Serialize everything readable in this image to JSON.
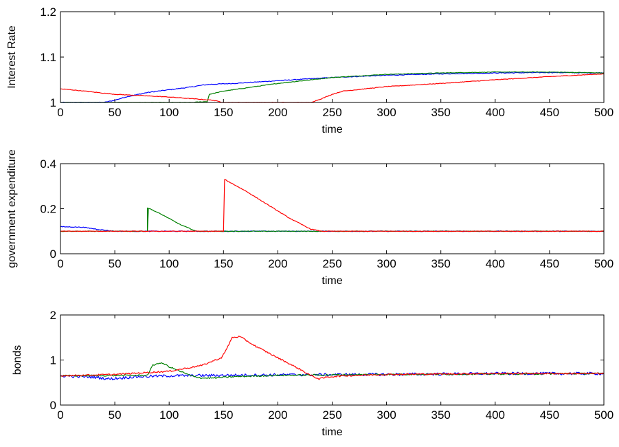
{
  "chart_data": [
    {
      "type": "line",
      "xlabel": "time",
      "ylabel": "Interest Rate",
      "xlim": [
        0,
        500
      ],
      "ylim": [
        1,
        1.2
      ],
      "xticks": [
        0,
        50,
        100,
        150,
        200,
        250,
        300,
        350,
        400,
        450,
        500
      ],
      "yticks": [
        1,
        1.1,
        1.2
      ],
      "ytick_labels": [
        "1",
        "1.1",
        "1.2"
      ],
      "grid": false,
      "series": [
        {
          "color": "#0000ff",
          "noise": 0.004,
          "points": [
            [
              0,
              1.0
            ],
            [
              40,
              1.0
            ],
            [
              50,
              1.005
            ],
            [
              60,
              1.012
            ],
            [
              80,
              1.022
            ],
            [
              100,
              1.028
            ],
            [
              120,
              1.034
            ],
            [
              130,
              1.038
            ],
            [
              138,
              1.04
            ],
            [
              160,
              1.042
            ],
            [
              200,
              1.048
            ],
            [
              250,
              1.055
            ],
            [
              300,
              1.06
            ],
            [
              350,
              1.063
            ],
            [
              400,
              1.065
            ],
            [
              450,
              1.066
            ],
            [
              500,
              1.065
            ]
          ]
        },
        {
          "color": "#008000",
          "noise": 0.003,
          "points": [
            [
              0,
              1.0
            ],
            [
              120,
              1.0
            ],
            [
              135,
              1.002
            ],
            [
              137,
              1.018
            ],
            [
              150,
              1.025
            ],
            [
              200,
              1.042
            ],
            [
              250,
              1.055
            ],
            [
              300,
              1.062
            ],
            [
              350,
              1.065
            ],
            [
              400,
              1.067
            ],
            [
              450,
              1.067
            ],
            [
              500,
              1.065
            ]
          ]
        },
        {
          "color": "#ff0000",
          "noise": 0.003,
          "points": [
            [
              0,
              1.03
            ],
            [
              10,
              1.028
            ],
            [
              50,
              1.018
            ],
            [
              100,
              1.012
            ],
            [
              140,
              1.005
            ],
            [
              150,
              1.0
            ],
            [
              230,
              1.0
            ],
            [
              240,
              1.008
            ],
            [
              250,
              1.018
            ],
            [
              260,
              1.025
            ],
            [
              300,
              1.035
            ],
            [
              350,
              1.042
            ],
            [
              400,
              1.05
            ],
            [
              450,
              1.057
            ],
            [
              500,
              1.063
            ]
          ]
        }
      ]
    },
    {
      "type": "line",
      "xlabel": "time",
      "ylabel": "government expenditure",
      "xlim": [
        0,
        500
      ],
      "ylim": [
        0,
        0.4
      ],
      "xticks": [
        0,
        50,
        100,
        150,
        200,
        250,
        300,
        350,
        400,
        450,
        500
      ],
      "yticks": [
        0,
        0.2,
        0.4
      ],
      "ytick_labels": [
        "0",
        "0.2",
        "0.4"
      ],
      "grid": false,
      "series": [
        {
          "color": "#0000ff",
          "noise": 0.004,
          "points": [
            [
              0,
              0.12
            ],
            [
              20,
              0.118
            ],
            [
              40,
              0.105
            ],
            [
              50,
              0.1
            ],
            [
              500,
              0.1
            ]
          ]
        },
        {
          "color": "#008000",
          "noise": 0.003,
          "points": [
            [
              0,
              0.1
            ],
            [
              80,
              0.1
            ],
            [
              80,
              0.205
            ],
            [
              95,
              0.17
            ],
            [
              110,
              0.13
            ],
            [
              125,
              0.1
            ],
            [
              500,
              0.1
            ]
          ]
        },
        {
          "color": "#ff0000",
          "noise": 0.003,
          "points": [
            [
              0,
              0.1
            ],
            [
              150,
              0.1
            ],
            [
              151,
              0.33
            ],
            [
              170,
              0.28
            ],
            [
              190,
              0.22
            ],
            [
              210,
              0.16
            ],
            [
              230,
              0.11
            ],
            [
              240,
              0.1
            ],
            [
              500,
              0.1
            ]
          ]
        }
      ]
    },
    {
      "type": "line",
      "xlabel": "time",
      "ylabel": "bonds",
      "xlim": [
        0,
        500
      ],
      "ylim": [
        0,
        2
      ],
      "xticks": [
        0,
        50,
        100,
        150,
        200,
        250,
        300,
        350,
        400,
        450,
        500
      ],
      "yticks": [
        0,
        1,
        2
      ],
      "ytick_labels": [
        "0",
        "1",
        "2"
      ],
      "grid": false,
      "series": [
        {
          "color": "#0000ff",
          "noise": 0.015,
          "points": [
            [
              0,
              0.65
            ],
            [
              30,
              0.62
            ],
            [
              45,
              0.58
            ],
            [
              55,
              0.6
            ],
            [
              70,
              0.63
            ],
            [
              100,
              0.65
            ],
            [
              150,
              0.66
            ],
            [
              200,
              0.67
            ],
            [
              300,
              0.68
            ],
            [
              400,
              0.7
            ],
            [
              500,
              0.7
            ]
          ]
        },
        {
          "color": "#008000",
          "noise": 0.008,
          "points": [
            [
              0,
              0.65
            ],
            [
              80,
              0.66
            ],
            [
              82,
              0.75
            ],
            [
              85,
              0.88
            ],
            [
              90,
              0.93
            ],
            [
              95,
              0.92
            ],
            [
              100,
              0.85
            ],
            [
              110,
              0.75
            ],
            [
              120,
              0.65
            ],
            [
              130,
              0.6
            ],
            [
              140,
              0.6
            ],
            [
              160,
              0.63
            ],
            [
              200,
              0.66
            ],
            [
              250,
              0.67
            ],
            [
              300,
              0.68
            ],
            [
              500,
              0.7
            ]
          ]
        },
        {
          "color": "#ff0000",
          "noise": 0.008,
          "points": [
            [
              0,
              0.65
            ],
            [
              50,
              0.68
            ],
            [
              100,
              0.75
            ],
            [
              130,
              0.88
            ],
            [
              148,
              1.05
            ],
            [
              152,
              1.2
            ],
            [
              158,
              1.5
            ],
            [
              165,
              1.52
            ],
            [
              180,
              1.3
            ],
            [
              200,
              1.05
            ],
            [
              220,
              0.8
            ],
            [
              230,
              0.66
            ],
            [
              238,
              0.58
            ],
            [
              245,
              0.62
            ],
            [
              260,
              0.65
            ],
            [
              300,
              0.68
            ],
            [
              400,
              0.7
            ],
            [
              500,
              0.7
            ]
          ]
        }
      ]
    }
  ]
}
